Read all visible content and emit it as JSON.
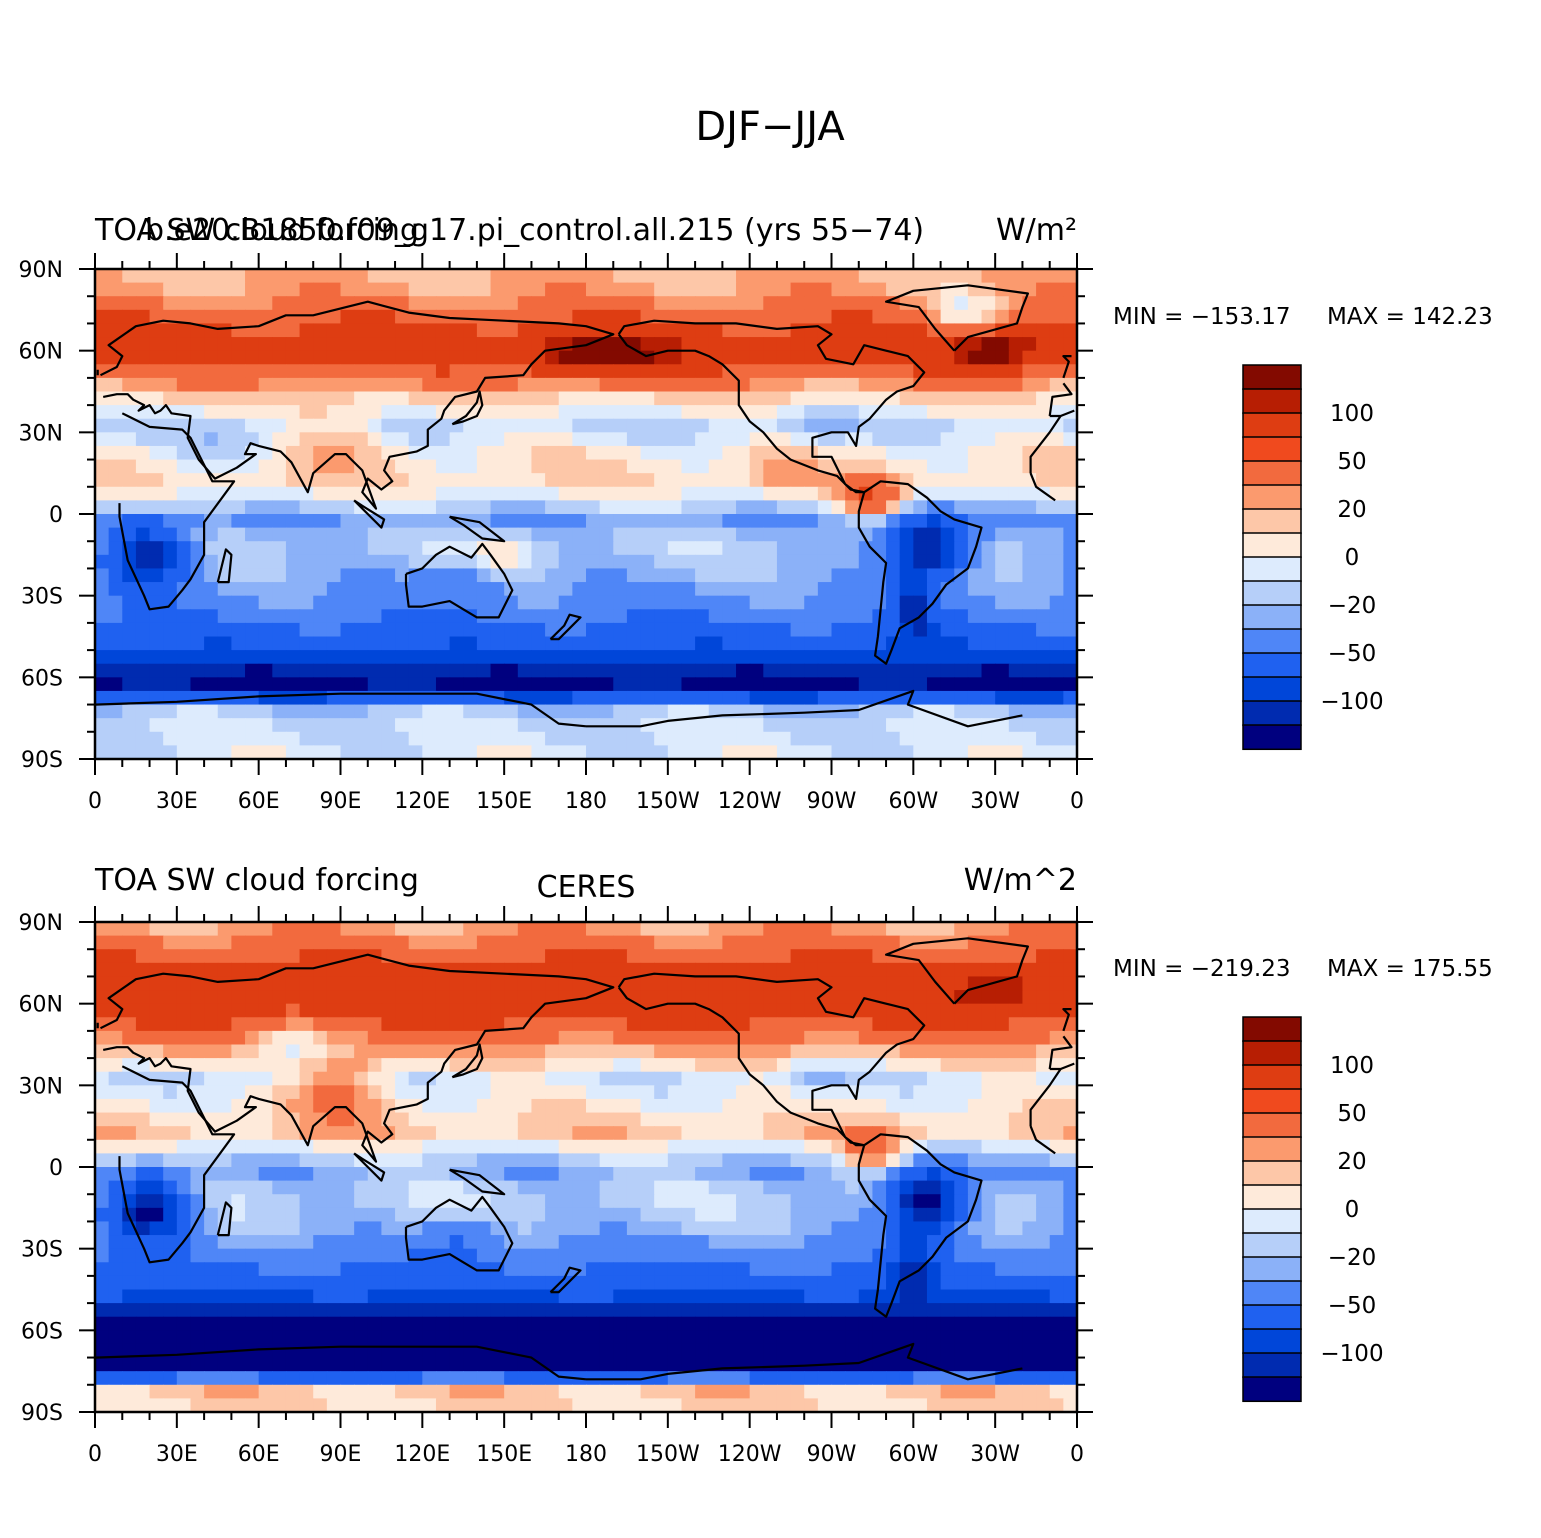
{
  "figure": {
    "title": "DJF−JJA"
  },
  "chart_data": [
    {
      "type": "heatmap",
      "title": "TOA SW cloud forcing",
      "left_overprint": "b.e20.B1850.f09_g17.pi_control.all.215 (yrs 55−74)",
      "center_title": "",
      "units": "W/m²",
      "min_text": "MIN = −153.17",
      "max_text": "MAX = 142.23",
      "min": -153.17,
      "max": 142.23,
      "x_ticks": [
        "0",
        "30E",
        "60E",
        "90E",
        "120E",
        "150E",
        "180",
        "150W",
        "120W",
        "90W",
        "60W",
        "30W",
        "0"
      ],
      "y_ticks": [
        "90N",
        "60N",
        "30N",
        "0",
        "30S",
        "60S",
        "90S"
      ],
      "xlim": [
        0,
        360
      ],
      "ylim": [
        -90,
        90
      ],
      "colorbar_levels": [
        -100,
        -50,
        -20,
        0,
        20,
        50,
        100
      ],
      "colorbar_labels": [
        "100",
        "50",
        "20",
        "0",
        "−20",
        "−50",
        "−100"
      ],
      "pattern": {
        "zonal": [
          [
            -90,
            -5
          ],
          [
            -78,
            -10
          ],
          [
            -70,
            -20
          ],
          [
            -65,
            -130
          ],
          [
            -58,
            -115
          ],
          [
            -50,
            -80
          ],
          [
            -42,
            -55
          ],
          [
            -32,
            -35
          ],
          [
            -20,
            -20
          ],
          [
            -10,
            -15
          ],
          [
            -2,
            -30
          ],
          [
            5,
            -5
          ],
          [
            12,
            10
          ],
          [
            22,
            5
          ],
          [
            32,
            -12
          ],
          [
            42,
            10
          ],
          [
            52,
            40
          ],
          [
            60,
            70
          ],
          [
            70,
            50
          ],
          [
            80,
            25
          ],
          [
            90,
            18
          ]
        ],
        "blobs": [
          [
            20,
            -15,
            15,
            12,
            -100
          ],
          [
            305,
            -12,
            15,
            12,
            -110
          ],
          [
            300,
            -35,
            8,
            12,
            -60
          ],
          [
            135,
            -25,
            14,
            8,
            -25
          ],
          [
            185,
            58,
            25,
            8,
            60
          ],
          [
            330,
            60,
            15,
            8,
            60
          ],
          [
            320,
            72,
            15,
            8,
            -40
          ],
          [
            90,
            30,
            18,
            12,
            20
          ],
          [
            265,
            33,
            12,
            8,
            -20
          ],
          [
            50,
            25,
            20,
            8,
            -15
          ],
          [
            150,
            -15,
            15,
            8,
            20
          ],
          [
            250,
            15,
            12,
            8,
            20
          ],
          [
            285,
            5,
            12,
            8,
            50
          ]
        ]
      }
    },
    {
      "type": "heatmap",
      "title": "TOA SW cloud forcing",
      "left_overprint": "",
      "center_title": "CERES",
      "units": "W/m^2",
      "min_text": "MIN = −219.23",
      "max_text": "MAX = 175.55",
      "min": -219.23,
      "max": 175.55,
      "x_ticks": [
        "0",
        "30E",
        "60E",
        "90E",
        "120E",
        "150E",
        "180",
        "150W",
        "120W",
        "90W",
        "60W",
        "30W",
        "0"
      ],
      "y_ticks": [
        "90N",
        "60N",
        "30N",
        "0",
        "30S",
        "60S",
        "90S"
      ],
      "xlim": [
        0,
        360
      ],
      "ylim": [
        -90,
        90
      ],
      "colorbar_levels": [
        -100,
        -50,
        -20,
        0,
        20,
        50,
        100
      ],
      "colorbar_labels": [
        "100",
        "50",
        "20",
        "0",
        "−20",
        "−50",
        "−100"
      ],
      "pattern": {
        "zonal": [
          [
            -90,
            10
          ],
          [
            -80,
            15
          ],
          [
            -74,
            -150
          ],
          [
            -66,
            -150
          ],
          [
            -58,
            -140
          ],
          [
            -50,
            -95
          ],
          [
            -42,
            -65
          ],
          [
            -32,
            -40
          ],
          [
            -20,
            -18
          ],
          [
            -10,
            -12
          ],
          [
            -2,
            -25
          ],
          [
            5,
            -10
          ],
          [
            12,
            15
          ],
          [
            22,
            5
          ],
          [
            32,
            -8
          ],
          [
            42,
            20
          ],
          [
            52,
            50
          ],
          [
            60,
            70
          ],
          [
            70,
            65
          ],
          [
            80,
            40
          ],
          [
            90,
            20
          ]
        ],
        "blobs": [
          [
            20,
            -15,
            15,
            12,
            -110
          ],
          [
            305,
            -12,
            15,
            12,
            -120
          ],
          [
            300,
            -35,
            8,
            12,
            -50
          ],
          [
            135,
            -25,
            14,
            8,
            -25
          ],
          [
            90,
            30,
            18,
            12,
            40
          ],
          [
            70,
            45,
            20,
            10,
            -30
          ],
          [
            265,
            33,
            12,
            8,
            -20
          ],
          [
            285,
            5,
            12,
            8,
            40
          ],
          [
            330,
            65,
            15,
            8,
            40
          ]
        ]
      }
    }
  ],
  "colors": {
    "palette": [
      "#00007F",
      "#002BB0",
      "#0046D9",
      "#1F61F0",
      "#4F86F7",
      "#8BB1F8",
      "#B6CFF9",
      "#DDEBFD",
      "#FEEADA",
      "#FDC7A8",
      "#FB9A6E",
      "#F26A3E",
      "#DE3D12",
      "#B71E03",
      "#830A00"
    ],
    "missing": "#FFFFFF",
    "coast": "#000000"
  }
}
